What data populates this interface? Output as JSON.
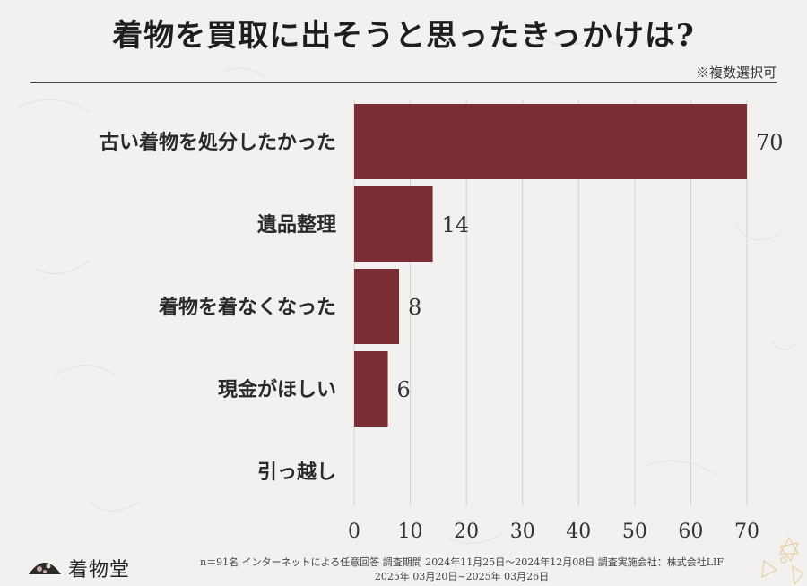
{
  "title": "着物を買取に出そうと思ったきっかけは?",
  "note": "※複数選択可",
  "chart_data": {
    "type": "bar",
    "orientation": "horizontal",
    "categories": [
      "古い着物を処分したかった",
      "遺品整理",
      "着物を着なくなった",
      "現金がほしい",
      "引っ越し"
    ],
    "values": [
      70,
      14,
      8,
      6,
      0
    ],
    "value_labels": [
      "70",
      "14",
      "8",
      "6",
      ""
    ],
    "xlim": [
      0,
      70
    ],
    "ticks": [
      0,
      10,
      20,
      30,
      40,
      50,
      60,
      70
    ],
    "tick_labels": [
      "0",
      "10",
      "20",
      "30",
      "40",
      "50",
      "60",
      "70"
    ],
    "grid": true,
    "bar_color": "#7a2e33"
  },
  "footer": {
    "logo_text": "着物堂",
    "line1": "n＝91名 インターネットによる任意回答 調査期間 2024年11月25日〜2024年12月08日 調査実施会社：株式会社LIF",
    "line2": "2025年 03月20日~2025年 03月26日"
  }
}
